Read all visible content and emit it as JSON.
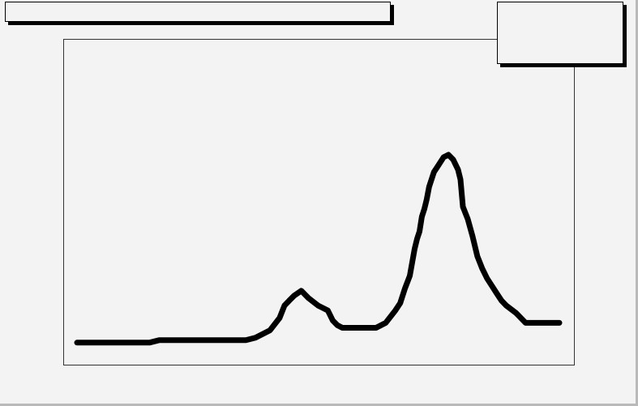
{
  "chart_data": {
    "type": "line",
    "title": "",
    "xlabel": "",
    "ylabel": "",
    "grid": false,
    "legend_position": "top-right",
    "xlim": [
      0,
      100
    ],
    "ylim": [
      0,
      100
    ],
    "series": [
      {
        "color": "#000000",
        "x": [
          0,
          5,
          10,
          14,
          15,
          17,
          20,
          25,
          30,
          35,
          37,
          40,
          42,
          43,
          44,
          45,
          46.5,
          48,
          50,
          52,
          53,
          54,
          55,
          56,
          58,
          60,
          62,
          64,
          66,
          67,
          68,
          69,
          70,
          70.5,
          71,
          71.5,
          72,
          72.5,
          73,
          74,
          75,
          76,
          77,
          78,
          79,
          79.5,
          80,
          81,
          82,
          83,
          84,
          85,
          86,
          87,
          88,
          89,
          91,
          93,
          94,
          95,
          97,
          99,
          100
        ],
        "y": [
          4,
          4,
          4,
          4,
          4,
          5,
          5,
          5,
          5,
          5,
          6,
          9,
          14,
          19,
          21,
          23,
          25,
          22,
          19,
          17,
          13,
          11,
          10,
          10,
          10,
          10,
          10,
          12,
          17,
          20,
          26,
          31,
          42,
          46,
          49,
          55,
          58,
          62,
          67,
          73,
          76,
          79,
          80,
          78,
          74,
          70,
          59,
          54,
          47,
          39,
          34,
          30,
          27,
          24,
          21,
          19,
          16,
          12,
          12,
          12,
          12,
          12,
          12
        ]
      }
    ]
  }
}
